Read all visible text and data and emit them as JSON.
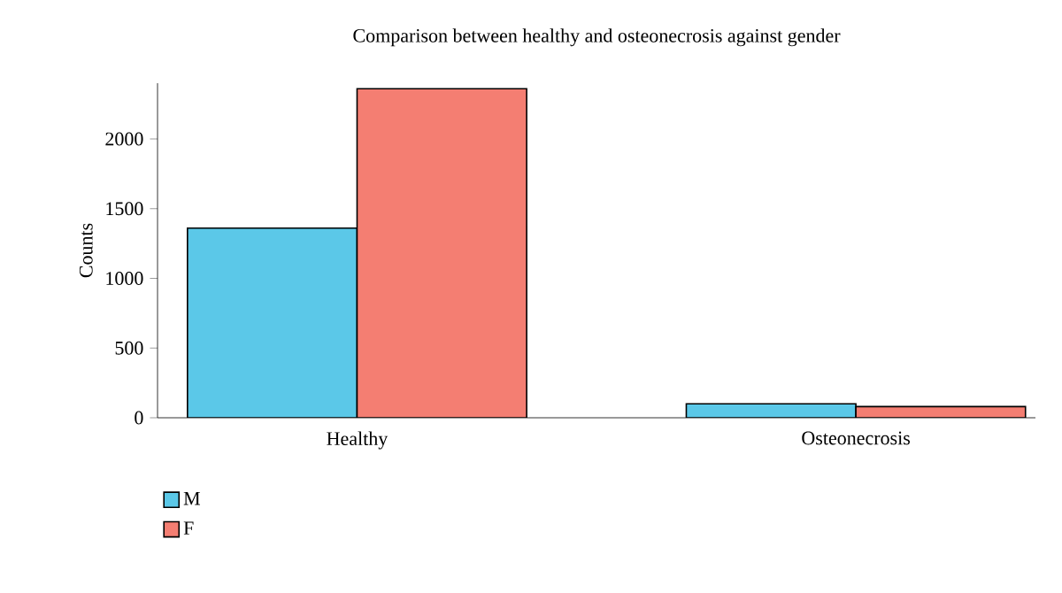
{
  "chart_data": {
    "type": "bar",
    "title": "Comparison between healthy and osteonecrosis against gender",
    "ylabel": "Counts",
    "categories": [
      "Healthy",
      "Osteonecrosis"
    ],
    "series": [
      {
        "name": "M",
        "color": "#5bc8e8",
        "values": [
          1360,
          100
        ]
      },
      {
        "name": "F",
        "color": "#f47e72",
        "values": [
          2360,
          80
        ]
      }
    ],
    "ylim": [
      0,
      2400
    ],
    "yticks": [
      0,
      500,
      1000,
      1500,
      2000
    ],
    "legend": "bottom left",
    "grid": false
  }
}
